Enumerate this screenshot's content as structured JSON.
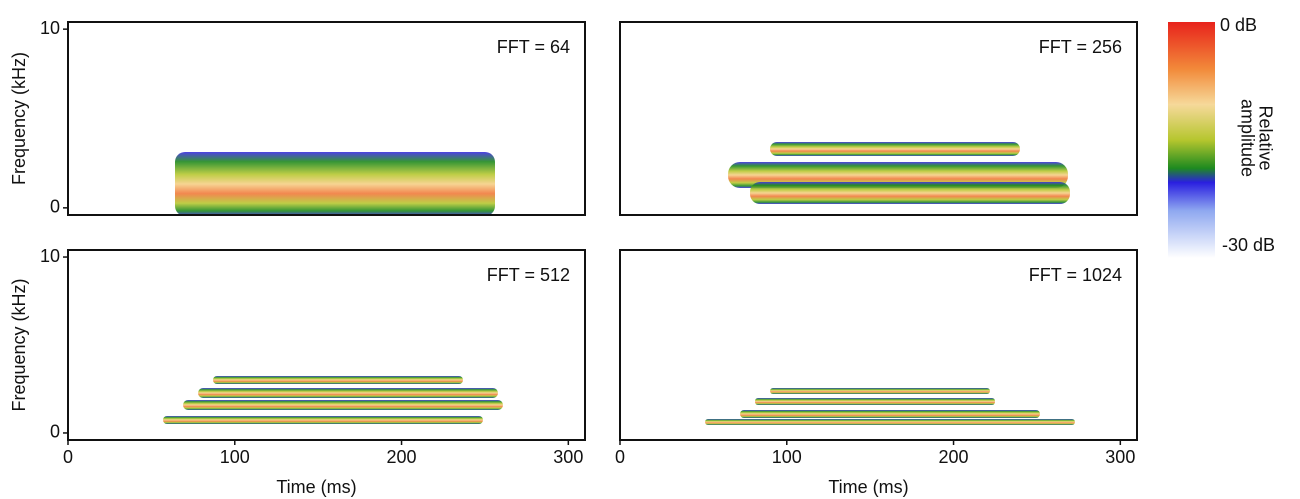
{
  "chart_data": [
    {
      "type": "spectrogram",
      "annotation": "FFT = 64",
      "ylabel": "Frequency (kHz)",
      "xlim": [
        0,
        310
      ],
      "ylim": [
        -0.4,
        10.4
      ],
      "yticks": [
        0,
        10
      ]
    },
    {
      "type": "spectrogram",
      "annotation": "FFT = 256",
      "xlim": [
        0,
        310
      ],
      "ylim": [
        -0.4,
        10.4
      ]
    },
    {
      "type": "spectrogram",
      "annotation": "FFT = 512",
      "ylabel": "Frequency (kHz)",
      "xlabel": "Time (ms)",
      "xlim": [
        0,
        310
      ],
      "ylim": [
        -0.4,
        10.4
      ],
      "xticks": [
        0,
        100,
        200,
        300
      ],
      "yticks": [
        0,
        10
      ]
    },
    {
      "type": "spectrogram",
      "annotation": "FFT = 1024",
      "xlabel": "Time (ms)",
      "xlim": [
        0,
        310
      ],
      "ylim": [
        -0.4,
        10.4
      ],
      "xticks": [
        0,
        100,
        200,
        300
      ]
    }
  ],
  "colorbar": {
    "max_label": "0 dB",
    "min_label": "-30 dB",
    "label": [
      "Relative",
      "amplitude"
    ]
  }
}
